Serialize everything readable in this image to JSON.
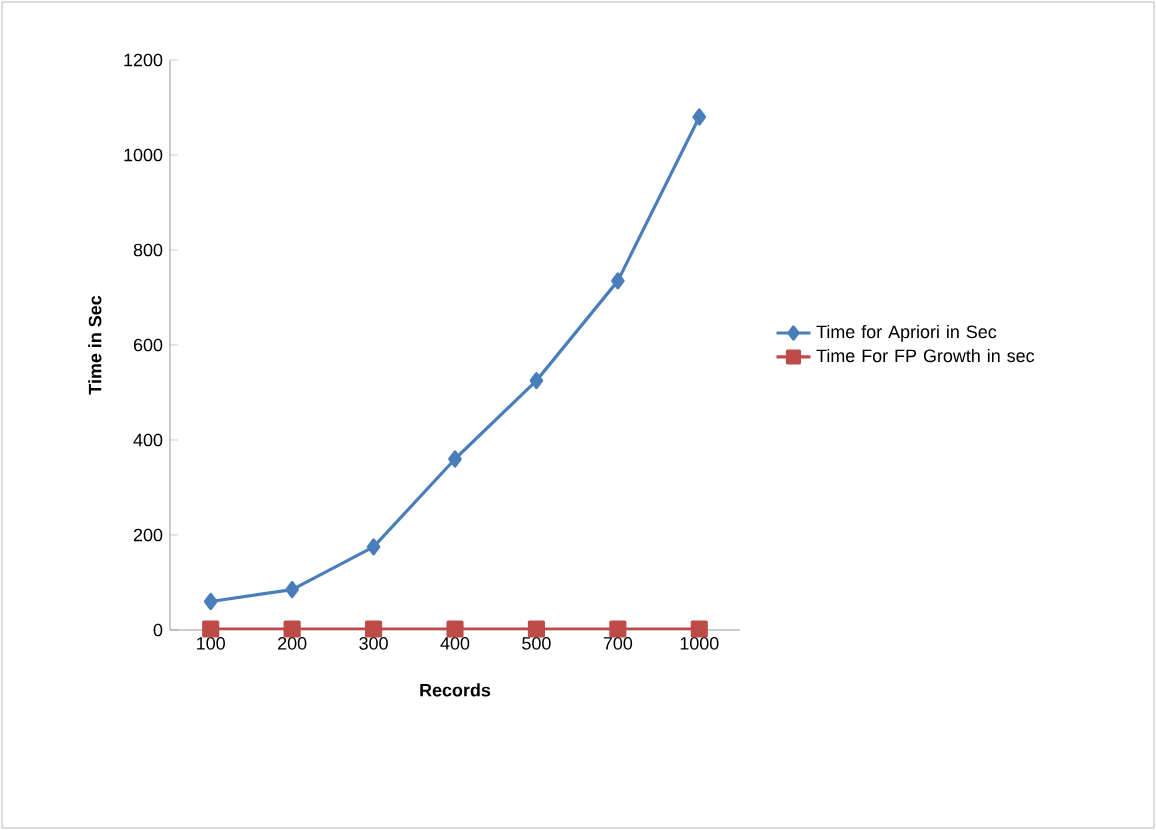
{
  "chart_data": {
    "type": "line",
    "xlabel": "Records",
    "ylabel": "Time in Sec",
    "categories": [
      "100",
      "200",
      "300",
      "400",
      "500",
      "700",
      "1000"
    ],
    "series": [
      {
        "name": "Time for Apriori in Sec",
        "color": "#4a7ebb",
        "marker": "diamond",
        "values": [
          60,
          85,
          175,
          360,
          525,
          735,
          1080
        ]
      },
      {
        "name": "Time For FP Growth in sec",
        "color": "#be4b48",
        "marker": "square",
        "values": [
          2,
          2,
          2,
          2,
          2,
          2,
          2
        ]
      }
    ],
    "ylim": [
      0,
      1200
    ],
    "yticks": [
      0,
      200,
      400,
      600,
      800,
      1000,
      1200
    ],
    "grid": false,
    "legend": "right"
  }
}
